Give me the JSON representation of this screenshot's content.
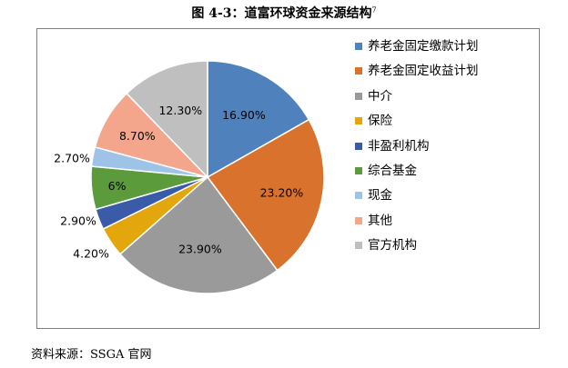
{
  "figure": {
    "title": "图 4-3：道富环球资金来源结构",
    "title_sup": "7"
  },
  "source": "资料来源：SSGA 官网",
  "chart_data": {
    "type": "pie",
    "legend_position": "right",
    "slices": [
      {
        "name": "养老金固定缴款计划",
        "value": 16.9,
        "label": "16.90%",
        "color": "#4f81bd"
      },
      {
        "name": "养老金固定收益计划",
        "value": 23.2,
        "label": "23.20%",
        "color": "#d8722c"
      },
      {
        "name": "中介",
        "value": 23.9,
        "label": "23.90%",
        "color": "#9a9a9a"
      },
      {
        "name": "保险",
        "value": 4.2,
        "label": "4.20%",
        "color": "#e3a60d"
      },
      {
        "name": "非盈利机构",
        "value": 2.9,
        "label": "2.90%",
        "color": "#3a5ba8"
      },
      {
        "name": "综合基金",
        "value": 6,
        "label": "6%",
        "color": "#5b9b3c"
      },
      {
        "name": "现金",
        "value": 2.7,
        "label": "2.70%",
        "color": "#9fc3e7"
      },
      {
        "name": "其他",
        "value": 8.7,
        "label": "8.70%",
        "color": "#f3a68b"
      },
      {
        "name": "官方机构",
        "value": 12.3,
        "label": "12.30%",
        "color": "#bfbfbf"
      }
    ]
  }
}
